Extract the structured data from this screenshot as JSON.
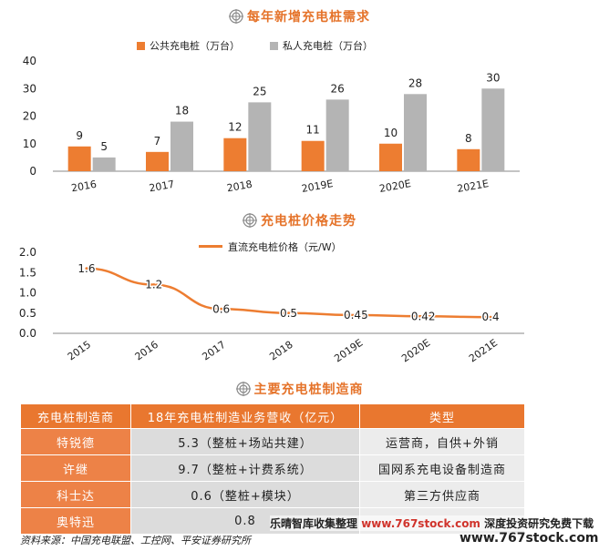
{
  "chart_data": [
    {
      "type": "bar",
      "title": "每年新增充电桩需求",
      "categories": [
        "2016",
        "2017",
        "2018",
        "2019E",
        "2020E",
        "2021E"
      ],
      "series": [
        {
          "name": "公共充电桩（万台）",
          "values": [
            9,
            7,
            12,
            11,
            10,
            8
          ],
          "color": "#ed7d31"
        },
        {
          "name": "私人充电桩（万台）",
          "values": [
            5,
            18,
            25,
            26,
            28,
            30
          ],
          "color": "#b4b4b4"
        }
      ],
      "ylim": [
        0,
        40
      ],
      "yticks": [
        "0",
        "10",
        "20",
        "30",
        "40"
      ],
      "grid": false,
      "legend": "top-center"
    },
    {
      "type": "line",
      "title": "充电桩价格走势",
      "categories": [
        "2015",
        "2016",
        "2017",
        "2018",
        "2019E",
        "2020E",
        "2021E"
      ],
      "series": [
        {
          "name": "直流充电桩价格（元/W）",
          "values": [
            1.6,
            1.2,
            0.6,
            0.5,
            0.45,
            0.42,
            0.4
          ],
          "color": "#ed7d31"
        }
      ],
      "value_labels": [
        "1.6",
        "1.2",
        "0.6",
        "0.5",
        "0.45",
        "0.42",
        "0.4"
      ],
      "ylim": [
        0,
        2.0
      ],
      "yticks": [
        "0.0",
        "0.5",
        "1.0",
        "1.5",
        "2.0"
      ],
      "grid": false,
      "legend": "top-center"
    }
  ],
  "table": {
    "title": "主要充电桩制造商",
    "headers": [
      "充电桩制造商",
      "18年充电桩制造业务营收（亿元）",
      "类型"
    ],
    "rows": [
      {
        "name": "特锐德",
        "revenue": "5.3（整桩+场站共建）",
        "type": "运营商，自供+外销"
      },
      {
        "name": "许继",
        "revenue": "9.7（整桩+计费系统）",
        "type": "国网系充电设备制造商"
      },
      {
        "name": "科士达",
        "revenue": "0.6（整桩+模块）",
        "type": "第三方供应商"
      },
      {
        "name": "奥特迅",
        "revenue": "0.8",
        "type": ""
      }
    ]
  },
  "source": "资料来源：中国充电联盟、工控网、平安证券研究所",
  "watermark": {
    "line1_a": "乐晴智库收集整理",
    "line1_b": "www.767stock.com",
    "line1_c": "深度投资研究免费下载",
    "line2": "www.767stock.com"
  },
  "colors": {
    "accent": "#ed7d31",
    "gray": "#b4b4b4",
    "table_header": "#e9772f"
  }
}
